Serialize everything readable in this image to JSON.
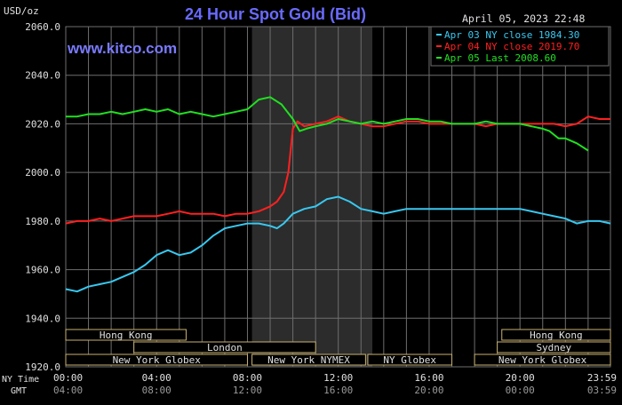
{
  "header": {
    "unit": "USD/oz",
    "title": "24 Hour Spot Gold (Bid)",
    "date_time": "April 05, 2023 22:48",
    "watermark": "www.kitco.com"
  },
  "colors": {
    "background": "#000000",
    "grid": "#6e6e6e",
    "title": "#6a6aff",
    "watermark": "#7a7aff",
    "text": "#e0e0e0",
    "apr03": "#38c8f0",
    "apr04": "#ff2020",
    "apr05": "#20e020",
    "highlight": "#2c2c2c",
    "session_border": "#c8b070"
  },
  "chart_data": {
    "type": "line",
    "title": "24 Hour Spot Gold (Bid)",
    "ylabel": "USD/oz",
    "xlabel": "",
    "ylim": [
      1920,
      2060
    ],
    "xlim_hours": [
      0,
      23.983
    ],
    "y_ticks": [
      "1920.0",
      "1940.0",
      "1960.0",
      "1980.0",
      "2000.0",
      "2020.0",
      "2040.0",
      "2060.0"
    ],
    "y_tick_values": [
      1920,
      1940,
      1960,
      1980,
      2000,
      2020,
      2040,
      2060
    ],
    "x_ticks_ny": [
      "00:00",
      "04:00",
      "08:00",
      "12:00",
      "16:00",
      "20:00",
      "23:59"
    ],
    "x_ticks_gmt": [
      "04:00",
      "08:00",
      "12:00",
      "16:00",
      "20:00",
      "00:00",
      "03:59"
    ],
    "x_tick_hours": [
      0,
      4,
      8,
      12,
      16,
      20,
      23.983
    ],
    "x_row_labels": {
      "ny": "NY Time",
      "gmt": "GMT"
    },
    "grid": true,
    "legend_position": "top-right",
    "highlight_range_hours": [
      8.2,
      13.5
    ],
    "series": [
      {
        "name": "Apr 03 NY close 1984.30",
        "color_key": "apr03",
        "x": [
          0,
          0.5,
          1,
          1.5,
          2,
          2.5,
          3,
          3.5,
          4,
          4.5,
          5,
          5.5,
          6,
          6.5,
          7,
          7.5,
          8,
          8.5,
          9,
          9.3,
          9.6,
          10,
          10.5,
          11,
          11.5,
          12,
          12.5,
          13,
          13.5,
          14,
          14.5,
          15,
          15.5,
          16,
          16.5,
          17,
          17.5,
          18,
          18.5,
          19,
          19.5,
          20,
          20.5,
          21,
          21.5,
          22,
          22.5,
          23,
          23.5,
          23.983
        ],
        "y": [
          1952,
          1951,
          1953,
          1954,
          1955,
          1957,
          1959,
          1962,
          1966,
          1968,
          1966,
          1967,
          1970,
          1974,
          1977,
          1978,
          1979,
          1979,
          1978,
          1977,
          1979,
          1983,
          1985,
          1986,
          1989,
          1990,
          1988,
          1985,
          1984,
          1983,
          1984,
          1985,
          1985,
          1985,
          1985,
          1985,
          1985,
          1985,
          1985,
          1985,
          1985,
          1985,
          1984,
          1983,
          1982,
          1981,
          1979,
          1980,
          1980,
          1979
        ]
      },
      {
        "name": "Apr 04 NY close 2019.70",
        "color_key": "apr04",
        "x": [
          0,
          0.5,
          1,
          1.5,
          2,
          2.5,
          3,
          3.5,
          4,
          4.5,
          5,
          5.5,
          6,
          6.5,
          7,
          7.5,
          8,
          8.5,
          9,
          9.3,
          9.6,
          9.8,
          10,
          10.2,
          10.5,
          11,
          11.5,
          12,
          12.5,
          13,
          13.5,
          14,
          14.5,
          15,
          15.5,
          16,
          16.5,
          17,
          17.5,
          18,
          18.5,
          19,
          19.5,
          20,
          20.5,
          21,
          21.5,
          22,
          22.5,
          23,
          23.5,
          23.983
        ],
        "y": [
          1979,
          1980,
          1980,
          1981,
          1980,
          1981,
          1982,
          1982,
          1982,
          1983,
          1984,
          1983,
          1983,
          1983,
          1982,
          1983,
          1983,
          1984,
          1986,
          1988,
          1992,
          2000,
          2018,
          2021,
          2019,
          2020,
          2021,
          2023,
          2021,
          2020,
          2019,
          2019,
          2020,
          2021,
          2021,
          2020,
          2020,
          2020,
          2020,
          2020,
          2019,
          2020,
          2020,
          2020,
          2020,
          2020,
          2020,
          2019,
          2020,
          2023,
          2022,
          2022
        ]
      },
      {
        "name": "Apr 05 Last 2008.60",
        "color_key": "apr05",
        "x": [
          0,
          0.5,
          1,
          1.5,
          2,
          2.5,
          3,
          3.5,
          4,
          4.5,
          5,
          5.5,
          6,
          6.5,
          7,
          7.5,
          8,
          8.5,
          9,
          9.5,
          10,
          10.3,
          10.6,
          11,
          11.5,
          12,
          12.5,
          13,
          13.5,
          14,
          14.5,
          15,
          15.5,
          16,
          16.5,
          17,
          17.5,
          18,
          18.5,
          19,
          19.5,
          20,
          20.5,
          21,
          21.3,
          21.7,
          22,
          22.5,
          23
        ],
        "y": [
          2023,
          2023,
          2024,
          2024,
          2025,
          2024,
          2025,
          2026,
          2025,
          2026,
          2024,
          2025,
          2024,
          2023,
          2024,
          2025,
          2026,
          2030,
          2031,
          2028,
          2022,
          2017,
          2018,
          2019,
          2020,
          2022,
          2021,
          2020,
          2021,
          2020,
          2021,
          2022,
          2022,
          2021,
          2021,
          2020,
          2020,
          2020,
          2021,
          2020,
          2020,
          2020,
          2019,
          2018,
          2017,
          2014,
          2014,
          2012,
          2009
        ]
      }
    ],
    "sessions_row1": [
      {
        "label": "Hong Kong",
        "start": -0.2,
        "end": 5.3
      },
      {
        "label": "Hong Kong",
        "start": 19.2,
        "end": 23.983
      }
    ],
    "sessions_row2": [
      {
        "label": "London",
        "start": 3.0,
        "end": 11.0
      },
      {
        "label": "Sydney",
        "start": 19.0,
        "end": 23.983
      }
    ],
    "sessions_row3": [
      {
        "label": "New York Globex",
        "start": -0.2,
        "end": 8.0
      },
      {
        "label": "New York NYMEX",
        "start": 8.2,
        "end": 13.2
      },
      {
        "label": "NY Globex",
        "start": 13.3,
        "end": 17.0
      },
      {
        "label": "New York Globex",
        "start": 18.0,
        "end": 23.983
      }
    ]
  }
}
